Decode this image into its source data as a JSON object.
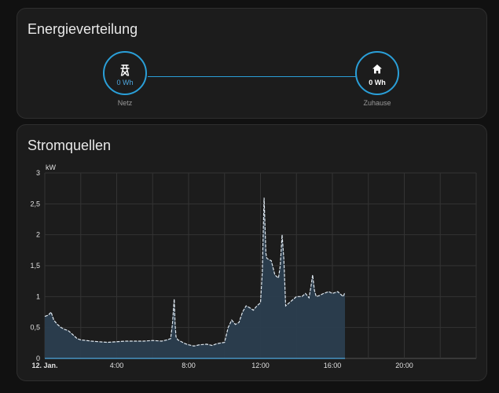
{
  "energy_card": {
    "title": "Energieverteilung",
    "grid": {
      "label": "Netz",
      "value": "0 Wh",
      "icon": "transmission-tower-icon",
      "value_color": "#4fa8e0"
    },
    "home": {
      "label": "Zuhause",
      "value": "0 Wh",
      "icon": "home-icon",
      "value_color": "#ffffff"
    },
    "accent": "#2a9fd8"
  },
  "sources_card": {
    "title": "Stromquellen"
  },
  "chart_data": {
    "type": "area",
    "title": "Stromquellen",
    "ylabel": "kW",
    "xlabel": "",
    "ylim": [
      0,
      3
    ],
    "xlim": [
      0,
      24
    ],
    "yticks": [
      {
        "value": 0,
        "label": "0"
      },
      {
        "value": 0.5,
        "label": "0,5"
      },
      {
        "value": 1,
        "label": "1"
      },
      {
        "value": 1.5,
        "label": "1,5"
      },
      {
        "value": 2,
        "label": "2"
      },
      {
        "value": 2.5,
        "label": "2,5"
      },
      {
        "value": 3,
        "label": "3"
      }
    ],
    "xticks": [
      {
        "value": 0,
        "label": "12. Jan.",
        "bold": true
      },
      {
        "value": 4,
        "label": "4:00"
      },
      {
        "value": 8,
        "label": "8:00"
      },
      {
        "value": 12,
        "label": "12:00"
      },
      {
        "value": 16,
        "label": "16:00"
      },
      {
        "value": 20,
        "label": "20:00"
      }
    ],
    "grid": true,
    "fill_color": "#2b3e4f",
    "line_color": "#dfe8f0",
    "series": [
      {
        "x": [
          0,
          0.2,
          0.35,
          0.5,
          0.7,
          0.9,
          1.1,
          1.3,
          1.5,
          1.8,
          2.0,
          2.3,
          2.6,
          3.0,
          3.5,
          4.0,
          4.5,
          5.0,
          5.5,
          6.0,
          6.5,
          6.8,
          7.0,
          7.1,
          7.2,
          7.25,
          7.3,
          7.4,
          7.6,
          7.8,
          8.0,
          8.3,
          8.6,
          9.0,
          9.3,
          9.6,
          10.0,
          10.2,
          10.4,
          10.6,
          10.8,
          11.0,
          11.2,
          11.4,
          11.6,
          11.8,
          12.0,
          12.1,
          12.2,
          12.3,
          12.35,
          12.45,
          12.6,
          12.8,
          13.0,
          13.1,
          13.2,
          13.3,
          13.4,
          13.6,
          13.8,
          14.0,
          14.3,
          14.5,
          14.7,
          14.8,
          14.9,
          15.0,
          15.1,
          15.3,
          15.5,
          15.8,
          16.0,
          16.3,
          16.6,
          16.7
        ],
        "values": [
          0.68,
          0.7,
          0.75,
          0.62,
          0.55,
          0.5,
          0.47,
          0.45,
          0.4,
          0.32,
          0.3,
          0.29,
          0.28,
          0.27,
          0.26,
          0.27,
          0.28,
          0.28,
          0.28,
          0.29,
          0.28,
          0.3,
          0.32,
          0.55,
          0.96,
          0.55,
          0.35,
          0.3,
          0.27,
          0.24,
          0.22,
          0.2,
          0.22,
          0.23,
          0.21,
          0.24,
          0.26,
          0.5,
          0.62,
          0.55,
          0.58,
          0.75,
          0.85,
          0.82,
          0.78,
          0.85,
          0.9,
          1.4,
          2.6,
          1.7,
          1.62,
          1.6,
          1.58,
          1.35,
          1.3,
          1.5,
          2.0,
          1.6,
          0.85,
          0.9,
          0.95,
          1.0,
          1.0,
          1.05,
          0.98,
          1.15,
          1.35,
          1.1,
          1.0,
          1.02,
          1.05,
          1.08,
          1.05,
          1.08,
          1.0,
          1.07
        ]
      }
    ]
  }
}
